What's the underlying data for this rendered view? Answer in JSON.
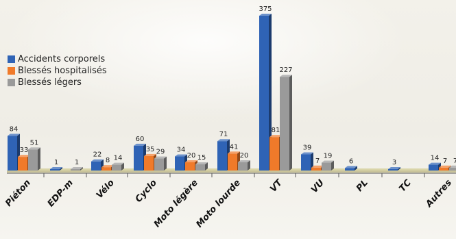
{
  "chart_data": {
    "type": "bar",
    "title": "",
    "xlabel": "",
    "ylabel": "",
    "ylim": [
      0,
      375
    ],
    "grid": false,
    "legend_position": "left",
    "categories": [
      "Piéton",
      "EDP-m",
      "Vélo",
      "Cyclo",
      "Moto légère",
      "Moto lourde",
      "VT",
      "VU",
      "PL",
      "TC",
      "Autres"
    ],
    "series": [
      {
        "name": "Accidents corporels",
        "color": "#2f63b5",
        "values": [
          84,
          1,
          22,
          60,
          34,
          71,
          375,
          39,
          6,
          3,
          14
        ]
      },
      {
        "name": "Blessés hospitalisés",
        "color": "#f07a2a",
        "values": [
          33,
          null,
          8,
          35,
          20,
          41,
          81,
          7,
          null,
          null,
          7
        ]
      },
      {
        "name": "Blessés légers",
        "color": "#9a9a9a",
        "values": [
          51,
          1,
          14,
          29,
          15,
          20,
          227,
          19,
          null,
          null,
          7
        ]
      }
    ],
    "value_labels": [
      [
        "84",
        "33",
        "51"
      ],
      [
        "1",
        "",
        "1"
      ],
      [
        "22",
        "8",
        "14"
      ],
      [
        "60",
        "35",
        "29"
      ],
      [
        "34",
        "20",
        "15"
      ],
      [
        "71",
        "41",
        "20"
      ],
      [
        "375",
        "81",
        "227"
      ],
      [
        "39",
        "7",
        "19"
      ],
      [
        "6",
        "",
        ""
      ],
      [
        "3",
        "",
        ""
      ],
      [
        "14",
        "7",
        "7"
      ]
    ]
  }
}
